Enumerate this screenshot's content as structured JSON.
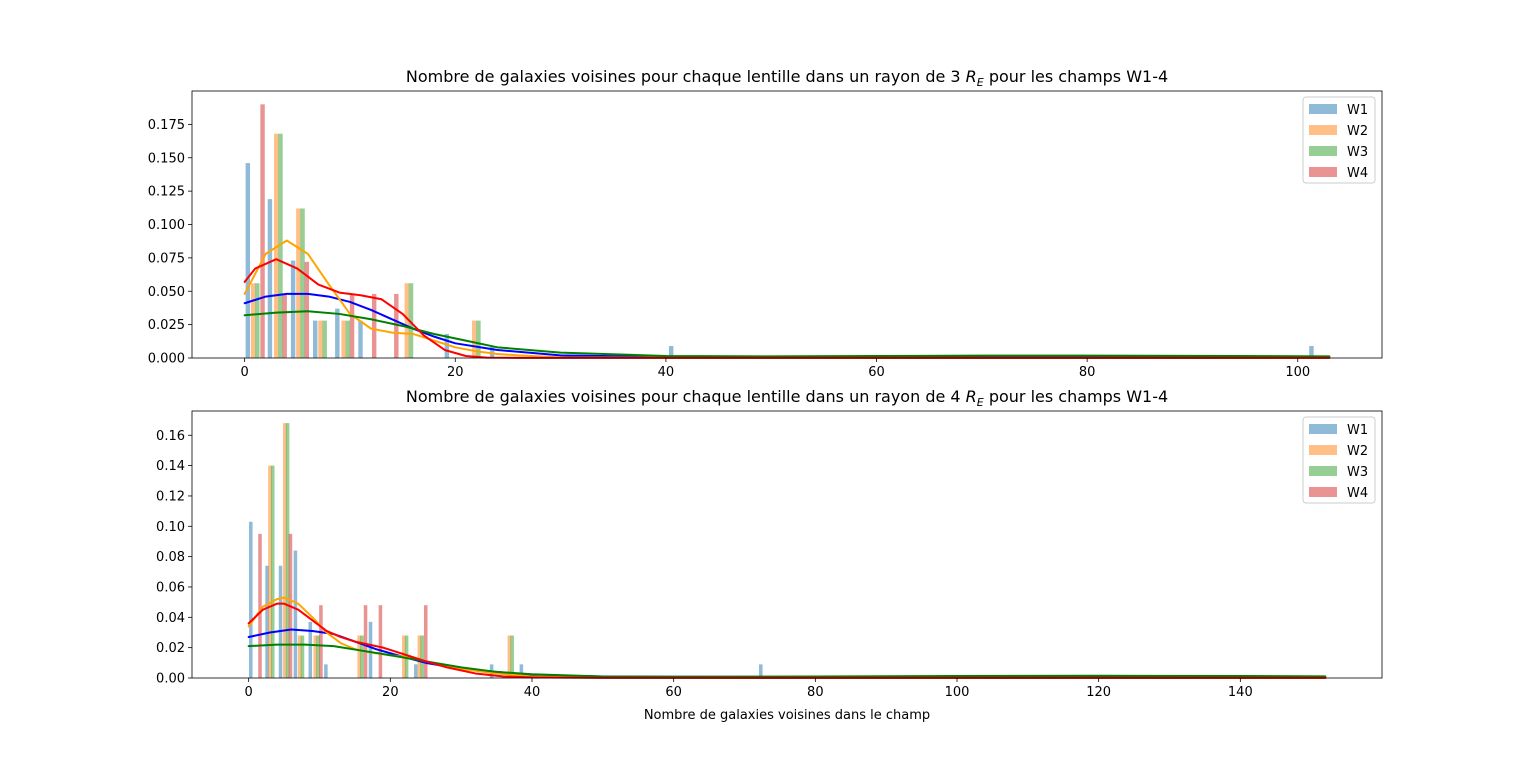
{
  "colors": {
    "W1": "#1f77b4",
    "W2": "#ff7f0e",
    "W3": "#2ca02c",
    "W4": "#d62728",
    "kde_W1": "#0000ff",
    "kde_W2": "#ffa500",
    "kde_W3": "#008000",
    "kde_W4": "#ff0000"
  },
  "chart_data": [
    {
      "type": "bar",
      "title_prefix": "Nombre de galaxies voisines pour chaque lentille dans un rayon de 3 ",
      "title_math": "R",
      "title_sub": "E",
      "title_suffix": " pour les champs W1-4",
      "xlabel": "",
      "ylabel": "",
      "xlim": [
        -5,
        108
      ],
      "ylim": [
        0,
        0.2
      ],
      "xticks": [
        0,
        20,
        40,
        60,
        80,
        100
      ],
      "yticks": [
        "0.000",
        "0.025",
        "0.050",
        "0.075",
        "0.100",
        "0.125",
        "0.150",
        "0.175"
      ],
      "legend": [
        "W1",
        "W2",
        "W3",
        "W4"
      ],
      "legend_loc": "upper right",
      "bar_width": 0.42,
      "series": [
        {
          "name": "W1",
          "bars": [
            [
              0.3,
              0.146
            ],
            [
              2.4,
              0.119
            ],
            [
              4.6,
              0.073
            ],
            [
              6.7,
              0.028
            ],
            [
              8.8,
              0.037
            ],
            [
              11.0,
              0.028
            ],
            [
              19.2,
              0.018
            ],
            [
              23.5,
              0.009
            ],
            [
              40.5,
              0.009
            ],
            [
              101.3,
              0.009
            ]
          ]
        },
        {
          "name": "W2",
          "bars": [
            [
              0.8,
              0.056
            ],
            [
              3.0,
              0.168
            ],
            [
              5.1,
              0.112
            ],
            [
              7.2,
              0.028
            ],
            [
              9.4,
              0.028
            ],
            [
              15.4,
              0.056
            ],
            [
              21.8,
              0.028
            ]
          ]
        },
        {
          "name": "W3",
          "bars": [
            [
              1.2,
              0.056
            ],
            [
              3.4,
              0.168
            ],
            [
              5.5,
              0.112
            ],
            [
              7.6,
              0.028
            ],
            [
              9.8,
              0.028
            ],
            [
              15.8,
              0.056
            ],
            [
              22.2,
              0.028
            ]
          ]
        },
        {
          "name": "W4",
          "bars": [
            [
              1.7,
              0.19
            ],
            [
              3.8,
              0.048
            ],
            [
              5.9,
              0.072
            ],
            [
              10.2,
              0.048
            ],
            [
              12.3,
              0.048
            ],
            [
              14.4,
              0.048
            ]
          ]
        }
      ],
      "kde": [
        {
          "name": "W1",
          "x": [
            0,
            2,
            4,
            6,
            8,
            10,
            12,
            14,
            16,
            18,
            20,
            24,
            30,
            40,
            50,
            60,
            70,
            80,
            90,
            100,
            103
          ],
          "y": [
            0.041,
            0.046,
            0.048,
            0.048,
            0.046,
            0.042,
            0.036,
            0.029,
            0.022,
            0.016,
            0.011,
            0.006,
            0.002,
            0.0008,
            0.0005,
            0.0006,
            0.0008,
            0.0009,
            0.0009,
            0.0008,
            0.0007
          ]
        },
        {
          "name": "W2",
          "x": [
            0,
            2,
            4,
            6,
            8,
            10,
            12,
            14,
            16,
            18,
            20,
            22,
            24,
            26,
            30,
            40,
            60,
            80,
            103
          ],
          "y": [
            0.048,
            0.078,
            0.088,
            0.078,
            0.055,
            0.033,
            0.022,
            0.019,
            0.018,
            0.013,
            0.008,
            0.005,
            0.003,
            0.002,
            0.0005,
            0.0002,
            0.0001,
            0.0001,
            0.0001
          ]
        },
        {
          "name": "W3",
          "x": [
            0,
            3,
            6,
            9,
            12,
            15,
            18,
            21,
            24,
            30,
            40,
            50,
            60,
            70,
            80,
            90,
            100,
            103
          ],
          "y": [
            0.032,
            0.034,
            0.035,
            0.033,
            0.029,
            0.024,
            0.018,
            0.013,
            0.008,
            0.004,
            0.0015,
            0.0012,
            0.0015,
            0.0018,
            0.0018,
            0.0016,
            0.0013,
            0.0012
          ]
        },
        {
          "name": "W4",
          "x": [
            0,
            1,
            3,
            5,
            7,
            9,
            11,
            13,
            15,
            17,
            19,
            21,
            23,
            26,
            30,
            40,
            60,
            80,
            103
          ],
          "y": [
            0.057,
            0.067,
            0.074,
            0.067,
            0.055,
            0.049,
            0.047,
            0.044,
            0.033,
            0.017,
            0.006,
            0.0015,
            0.0003,
            0.0001,
            0.0001,
            0.0001,
            0.0001,
            0.0001,
            0.0001
          ]
        }
      ]
    },
    {
      "type": "bar",
      "title_prefix": "Nombre de galaxies voisines pour chaque lentille dans un rayon de 4 ",
      "title_math": "R",
      "title_sub": "E",
      "title_suffix": " pour les champs W1-4",
      "xlabel": "Nombre de galaxies voisines dans le champ",
      "ylabel": "",
      "xlim": [
        -8,
        160
      ],
      "ylim": [
        0,
        0.176
      ],
      "xticks": [
        0,
        20,
        40,
        60,
        80,
        100,
        120,
        140
      ],
      "yticks": [
        "0.00",
        "0.02",
        "0.04",
        "0.06",
        "0.08",
        "0.10",
        "0.12",
        "0.14",
        "0.16"
      ],
      "legend": [
        "W1",
        "W2",
        "W3",
        "W4"
      ],
      "legend_loc": "upper right",
      "bar_width": 0.5,
      "series": [
        {
          "name": "W1",
          "bars": [
            [
              0.3,
              0.103
            ],
            [
              2.6,
              0.074
            ],
            [
              4.5,
              0.074
            ],
            [
              6.6,
              0.084
            ],
            [
              8.7,
              0.037
            ],
            [
              10.9,
              0.009
            ],
            [
              17.2,
              0.037
            ],
            [
              23.6,
              0.009
            ],
            [
              34.3,
              0.009
            ],
            [
              38.5,
              0.009
            ],
            [
              72.3,
              0.009
            ]
          ]
        },
        {
          "name": "W2",
          "bars": [
            [
              3.0,
              0.14
            ],
            [
              5.1,
              0.168
            ],
            [
              7.2,
              0.028
            ],
            [
              9.4,
              0.028
            ],
            [
              15.6,
              0.028
            ],
            [
              21.9,
              0.028
            ],
            [
              24.1,
              0.028
            ],
            [
              36.8,
              0.028
            ]
          ]
        },
        {
          "name": "W3",
          "bars": [
            [
              3.4,
              0.14
            ],
            [
              5.5,
              0.168
            ],
            [
              7.6,
              0.028
            ],
            [
              9.8,
              0.028
            ],
            [
              16.0,
              0.028
            ],
            [
              22.3,
              0.028
            ],
            [
              24.5,
              0.028
            ],
            [
              37.2,
              0.028
            ]
          ]
        },
        {
          "name": "W4",
          "bars": [
            [
              1.6,
              0.095
            ],
            [
              5.9,
              0.095
            ],
            [
              10.2,
              0.048
            ],
            [
              16.5,
              0.048
            ],
            [
              18.6,
              0.048
            ],
            [
              25.0,
              0.048
            ]
          ]
        }
      ],
      "kde": [
        {
          "name": "W1",
          "x": [
            0,
            3,
            6,
            9,
            12,
            15,
            18,
            21,
            25,
            30,
            35,
            40,
            50,
            60,
            80,
            100,
            120,
            140,
            152
          ],
          "y": [
            0.027,
            0.03,
            0.032,
            0.031,
            0.029,
            0.024,
            0.019,
            0.015,
            0.01,
            0.006,
            0.004,
            0.002,
            0.001,
            0.0008,
            0.0007,
            0.0007,
            0.0006,
            0.0005,
            0.0005
          ]
        },
        {
          "name": "W2",
          "x": [
            0,
            2,
            4,
            5,
            7,
            9,
            11,
            13,
            15,
            17,
            20,
            22,
            24,
            27,
            30,
            35,
            40,
            50,
            70,
            100,
            152
          ],
          "y": [
            0.034,
            0.047,
            0.052,
            0.053,
            0.049,
            0.04,
            0.03,
            0.023,
            0.019,
            0.017,
            0.015,
            0.014,
            0.012,
            0.009,
            0.006,
            0.003,
            0.001,
            0.0003,
            0.0001,
            0.0001,
            0.0001
          ]
        },
        {
          "name": "W3",
          "x": [
            0,
            4,
            8,
            12,
            16,
            20,
            25,
            30,
            35,
            40,
            50,
            60,
            80,
            100,
            120,
            140,
            152
          ],
          "y": [
            0.021,
            0.022,
            0.022,
            0.021,
            0.018,
            0.015,
            0.011,
            0.007,
            0.004,
            0.0025,
            0.001,
            0.0008,
            0.001,
            0.0013,
            0.0015,
            0.0013,
            0.0011
          ]
        },
        {
          "name": "W4",
          "x": [
            0,
            2,
            4,
            5,
            7,
            9,
            11,
            13,
            15,
            17,
            19,
            21,
            23,
            25,
            28,
            32,
            36,
            40,
            50,
            70,
            100,
            152
          ],
          "y": [
            0.036,
            0.045,
            0.049,
            0.049,
            0.045,
            0.038,
            0.031,
            0.027,
            0.024,
            0.022,
            0.02,
            0.017,
            0.014,
            0.011,
            0.007,
            0.003,
            0.001,
            0.0004,
            0.0001,
            0.0001,
            0.0001,
            0.0001
          ]
        }
      ]
    }
  ]
}
